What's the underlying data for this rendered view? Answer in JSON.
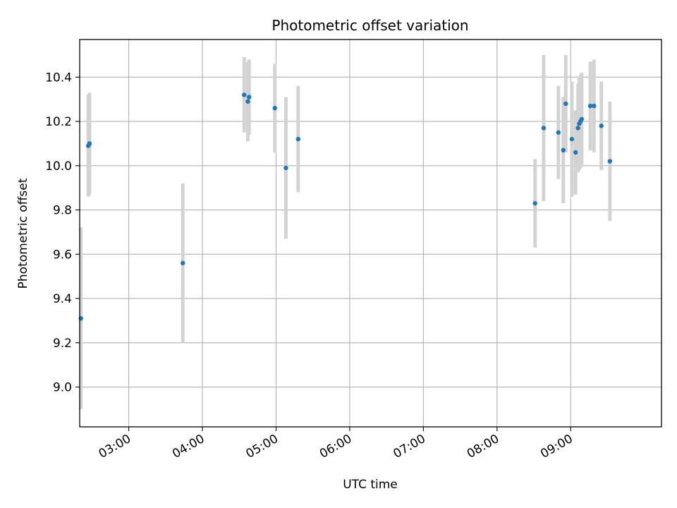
{
  "chart_data": {
    "type": "scatter",
    "title": "Photometric offset variation",
    "xlabel": "UTC time",
    "ylabel": "Photometric offset",
    "x_unit": "UTC time (HH:MM)",
    "xlim": [
      "02:20",
      "10:14"
    ],
    "ylim": [
      8.82,
      10.57
    ],
    "grid": true,
    "x_ticks": [
      "03:00",
      "04:00",
      "05:00",
      "06:00",
      "07:00",
      "08:00",
      "09:00"
    ],
    "y_ticks": [
      "9.0",
      "9.2",
      "9.4",
      "9.6",
      "9.8",
      "10.0",
      "10.2",
      "10.4"
    ],
    "point_color": "#1f77b4",
    "errorbar_color": "#d3d3d3",
    "series": [
      {
        "marker": "dot",
        "points": [
          {
            "x": "02:21",
            "y": 9.31,
            "err": 0.41
          },
          {
            "x": "02:27",
            "y": 10.09,
            "err": 0.23
          },
          {
            "x": "02:28",
            "y": 10.1,
            "err": 0.23
          },
          {
            "x": "03:44",
            "y": 9.56,
            "err": 0.36
          },
          {
            "x": "04:34",
            "y": 10.32,
            "err": 0.17
          },
          {
            "x": "04:37",
            "y": 10.29,
            "err": 0.18
          },
          {
            "x": "04:38",
            "y": 10.31,
            "err": 0.17
          },
          {
            "x": "04:59",
            "y": 10.26,
            "err": 0.2
          },
          {
            "x": "05:08",
            "y": 9.99,
            "err": 0.32
          },
          {
            "x": "05:18",
            "y": 10.12,
            "err": 0.24
          },
          {
            "x": "08:31",
            "y": 9.83,
            "err": 0.2
          },
          {
            "x": "08:38",
            "y": 10.17,
            "err": 0.33
          },
          {
            "x": "08:50",
            "y": 10.15,
            "err": 0.21
          },
          {
            "x": "08:54",
            "y": 10.07,
            "err": 0.24
          },
          {
            "x": "08:56",
            "y": 10.28,
            "err": 0.22
          },
          {
            "x": "09:01",
            "y": 10.12,
            "err": 0.26
          },
          {
            "x": "09:04",
            "y": 10.06,
            "err": 0.19
          },
          {
            "x": "09:06",
            "y": 10.17,
            "err": 0.2
          },
          {
            "x": "09:07",
            "y": 10.19,
            "err": 0.21
          },
          {
            "x": "09:08",
            "y": 10.2,
            "err": 0.21
          },
          {
            "x": "09:09",
            "y": 10.21,
            "err": 0.21
          },
          {
            "x": "09:16",
            "y": 10.27,
            "err": 0.2
          },
          {
            "x": "09:19",
            "y": 10.27,
            "err": 0.21
          },
          {
            "x": "09:25",
            "y": 10.18,
            "err": 0.2
          },
          {
            "x": "09:32",
            "y": 10.02,
            "err": 0.27
          }
        ]
      }
    ]
  }
}
